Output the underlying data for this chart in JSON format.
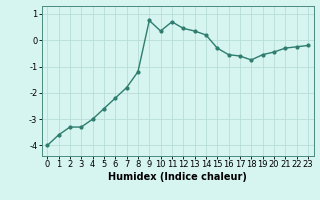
{
  "x": [
    0,
    1,
    2,
    3,
    4,
    5,
    6,
    7,
    8,
    9,
    10,
    11,
    12,
    13,
    14,
    15,
    16,
    17,
    18,
    19,
    20,
    21,
    22,
    23
  ],
  "y": [
    -4.0,
    -3.6,
    -3.3,
    -3.3,
    -3.0,
    -2.6,
    -2.2,
    -1.8,
    -1.2,
    0.75,
    0.35,
    0.7,
    0.45,
    0.35,
    0.2,
    -0.3,
    -0.55,
    -0.6,
    -0.75,
    -0.55,
    -0.45,
    -0.3,
    -0.25,
    -0.2
  ],
  "line_color": "#2e7d6e",
  "marker": "o",
  "marker_size": 2.0,
  "line_width": 1.0,
  "bg_color": "#d6f5f0",
  "grid_color": "#b8ddd8",
  "xlabel": "Humidex (Indice chaleur)",
  "xlabel_fontsize": 7,
  "tick_fontsize": 6,
  "xlim": [
    -0.5,
    23.5
  ],
  "ylim": [
    -4.4,
    1.3
  ],
  "yticks": [
    -4,
    -3,
    -2,
    -1,
    0,
    1
  ],
  "xticks": [
    0,
    1,
    2,
    3,
    4,
    5,
    6,
    7,
    8,
    9,
    10,
    11,
    12,
    13,
    14,
    15,
    16,
    17,
    18,
    19,
    20,
    21,
    22,
    23
  ]
}
